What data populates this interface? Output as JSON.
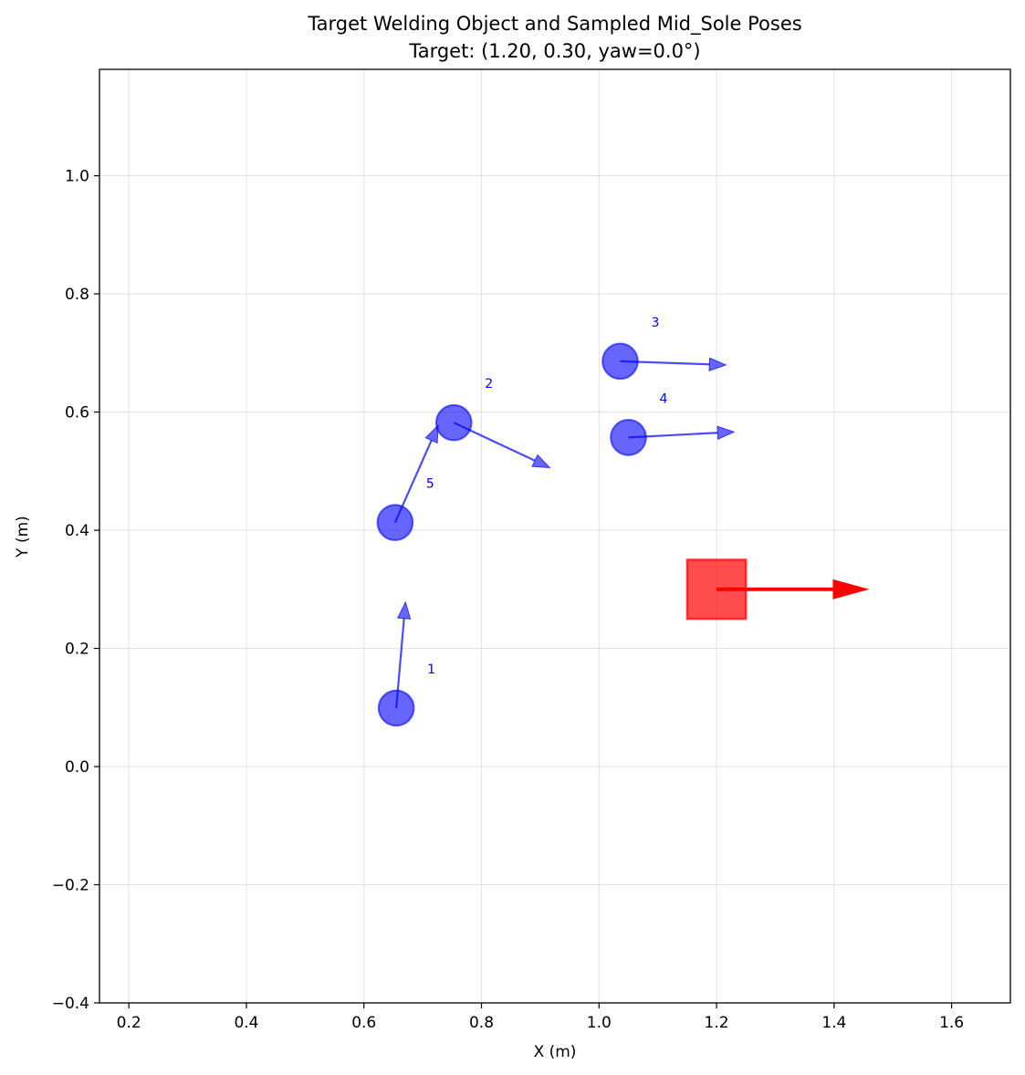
{
  "chart_data": {
    "type": "scatter",
    "title": "Target Welding Object and Sampled Mid_Sole Poses",
    "subtitle": "Target: (1.20, 0.30, yaw=0.0°)",
    "xlabel": "X (m)",
    "ylabel": "Y (m)",
    "xlim": [
      0.15,
      1.7
    ],
    "ylim": [
      -0.4,
      1.18
    ],
    "xticks": [
      0.2,
      0.4,
      0.6,
      0.8,
      1.0,
      1.2,
      1.4,
      1.6
    ],
    "xtick_labels": [
      "0.2",
      "0.4",
      "0.6",
      "0.8",
      "1.0",
      "1.2",
      "1.4",
      "1.6"
    ],
    "yticks": [
      -0.4,
      -0.2,
      0.0,
      0.2,
      0.4,
      0.6,
      0.8,
      1.0
    ],
    "ytick_labels": [
      "−0.4",
      "−0.2",
      "0.0",
      "0.2",
      "0.4",
      "0.6",
      "0.8",
      "1.0"
    ],
    "grid": true,
    "target": {
      "x": 1.2,
      "y": 0.3,
      "yaw_deg": 0.0,
      "half_size": 0.05,
      "arrow_length": 0.26,
      "color": "#ff0000"
    },
    "poses": [
      {
        "label": "1",
        "x": 0.655,
        "y": 0.099,
        "yaw_deg": 85
      },
      {
        "label": "2",
        "x": 0.753,
        "y": 0.582,
        "yaw_deg": -25
      },
      {
        "label": "3",
        "x": 1.036,
        "y": 0.686,
        "yaw_deg": -2
      },
      {
        "label": "4",
        "x": 1.05,
        "y": 0.557,
        "yaw_deg": 3
      },
      {
        "label": "5",
        "x": 0.653,
        "y": 0.413,
        "yaw_deg": 66
      }
    ],
    "pose_color": "#0000ff",
    "pose_radius": 0.03,
    "pose_arrow_length": 0.18
  }
}
